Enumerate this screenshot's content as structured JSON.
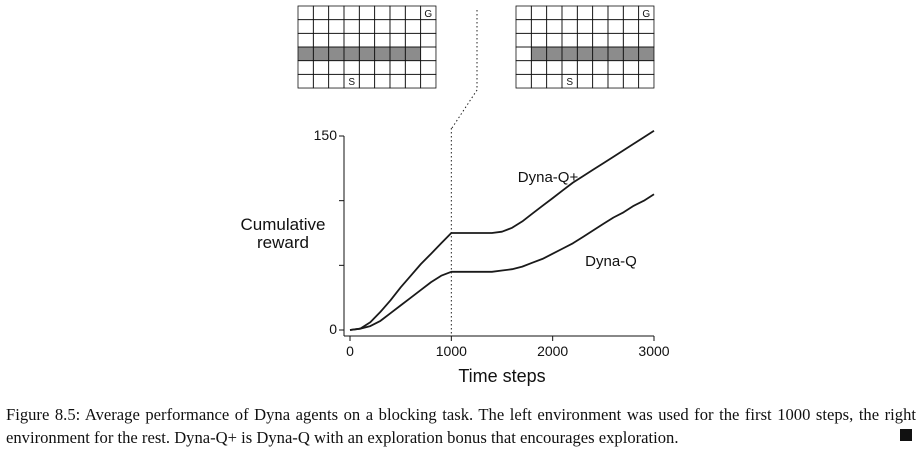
{
  "figure": {
    "caption": "Figure 8.5: Average performance of Dyna agents on a blocking task. The left environment was used for the first 1000 steps, the right environment for the rest. Dyna-Q+ is Dyna-Q with an exploration bonus that encourages exploration."
  },
  "gridworlds": [
    {
      "name": "left",
      "rows": 6,
      "cols": 9,
      "start_label": "S",
      "start_cell": [
        5,
        3
      ],
      "goal_label": "G",
      "goal_cell": [
        0,
        8
      ],
      "wall_row": 3,
      "wall_cols": [
        0,
        7
      ]
    },
    {
      "name": "right",
      "rows": 6,
      "cols": 9,
      "start_label": "S",
      "start_cell": [
        5,
        3
      ],
      "goal_label": "G",
      "goal_cell": [
        0,
        8
      ],
      "wall_row": 3,
      "wall_cols": [
        1,
        8
      ]
    }
  ],
  "chart_data": {
    "type": "line",
    "xlabel": "Time steps",
    "ylabel_lines": [
      "Cumulative",
      "reward"
    ],
    "xlim": [
      0,
      3000
    ],
    "ylim": [
      0,
      150
    ],
    "xticks": [
      0,
      1000,
      2000,
      3000
    ],
    "xtick_labels": [
      "0",
      "1000",
      "2000",
      "3000"
    ],
    "yticks": [
      0,
      50,
      100,
      150
    ],
    "ytick_labels": [
      "0",
      "",
      "",
      "150"
    ],
    "switch_x": 1000,
    "series": [
      {
        "name": "Dyna-Q+",
        "x": [
          0,
          100,
          200,
          300,
          400,
          500,
          600,
          700,
          800,
          900,
          1000,
          1100,
          1200,
          1300,
          1400,
          1500,
          1600,
          1700,
          1800,
          1900,
          2000,
          2100,
          2200,
          2300,
          2400,
          2500,
          2600,
          2700,
          2800,
          2900,
          3000
        ],
        "y": [
          0,
          1,
          6,
          14,
          23,
          33,
          42,
          51,
          59,
          67,
          75,
          75,
          75,
          75,
          75,
          76,
          79,
          84,
          90,
          96,
          102,
          108,
          114,
          119,
          124,
          129,
          134,
          139,
          144,
          149,
          154
        ]
      },
      {
        "name": "Dyna-Q",
        "x": [
          0,
          100,
          200,
          300,
          400,
          500,
          600,
          700,
          800,
          900,
          1000,
          1100,
          1200,
          1300,
          1400,
          1500,
          1600,
          1700,
          1800,
          1900,
          2000,
          2100,
          2200,
          2300,
          2400,
          2500,
          2600,
          2700,
          2800,
          2900,
          3000
        ],
        "y": [
          0,
          1,
          3,
          7,
          13,
          19,
          25,
          31,
          37,
          42,
          45,
          45,
          45,
          45,
          45,
          46,
          47,
          49,
          52,
          55,
          59,
          63,
          67,
          72,
          77,
          82,
          87,
          91,
          96,
          100,
          105
        ]
      }
    ]
  }
}
